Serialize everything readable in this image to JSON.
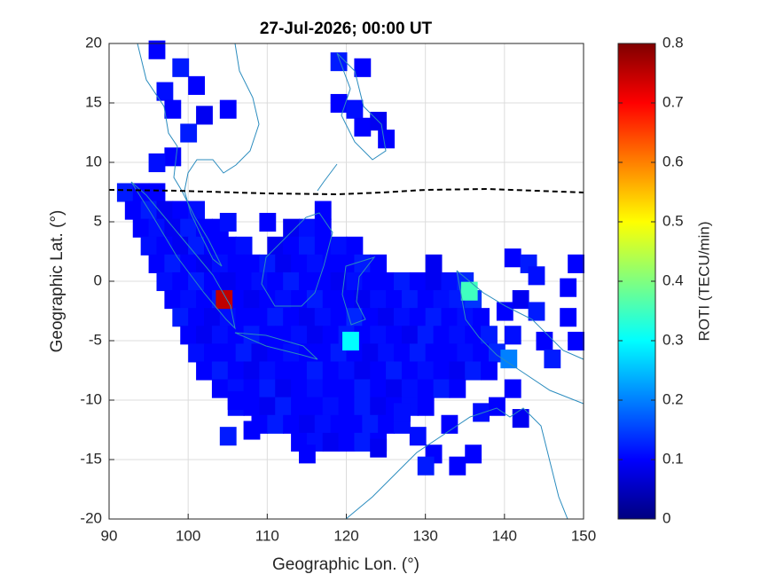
{
  "chart_data": {
    "type": "map",
    "title": "27-Jul-2026; 00:00 UT",
    "x_label": "Geographic Lon. (°)",
    "y_label": "Geographic Lat. (°)",
    "colorbar_label": "ROTI (TECU/min)",
    "colormap": "jet",
    "grid": true,
    "xlim": [
      90,
      150
    ],
    "ylim": [
      -20,
      20
    ],
    "xticks": [
      90,
      100,
      110,
      120,
      130,
      140,
      150
    ],
    "yticks": [
      20,
      15,
      10,
      5,
      0,
      -5,
      -10,
      -15,
      -20
    ],
    "clim": [
      0,
      0.8
    ],
    "cticks": [
      0,
      0.1,
      0.2,
      0.3,
      0.4,
      0.5,
      0.6,
      0.7,
      0.8
    ],
    "x": [
      92,
      94,
      96,
      93,
      95,
      97,
      99,
      101,
      117,
      94,
      96,
      98,
      100,
      102,
      104,
      113,
      115,
      117,
      95,
      97,
      99,
      101,
      103,
      105,
      107,
      111,
      113,
      115,
      117,
      119,
      121,
      96,
      98,
      100,
      102,
      104,
      106,
      108,
      110,
      112,
      114,
      116,
      118,
      120,
      122,
      124,
      131,
      97,
      99,
      101,
      103,
      105,
      107,
      109,
      111,
      113,
      115,
      117,
      119,
      121,
      123,
      125,
      127,
      129,
      131,
      133,
      135,
      98,
      100,
      102,
      104,
      106,
      108,
      110,
      112,
      114,
      116,
      118,
      120,
      122,
      124,
      126,
      128,
      130,
      132,
      134,
      136,
      99,
      101,
      103,
      105,
      107,
      109,
      111,
      113,
      115,
      117,
      119,
      121,
      123,
      125,
      127,
      129,
      131,
      133,
      135,
      137,
      100,
      102,
      104,
      106,
      108,
      110,
      112,
      114,
      116,
      118,
      120,
      122,
      124,
      126,
      128,
      130,
      132,
      134,
      136,
      138,
      101,
      103,
      105,
      107,
      109,
      111,
      113,
      115,
      117,
      119,
      121,
      123,
      125,
      127,
      129,
      131,
      133,
      135,
      137,
      139,
      102,
      104,
      106,
      108,
      110,
      112,
      114,
      116,
      118,
      120,
      122,
      124,
      126,
      128,
      130,
      132,
      134,
      136,
      138,
      104,
      106,
      108,
      110,
      112,
      114,
      116,
      118,
      120,
      122,
      124,
      126,
      128,
      130,
      132,
      134,
      106,
      108,
      110,
      112,
      114,
      116,
      118,
      120,
      122,
      124,
      126,
      128,
      130,
      109,
      111,
      113,
      115,
      117,
      119,
      121,
      123,
      125,
      127,
      114,
      116,
      118,
      120,
      122,
      124,
      104.5,
      135.5,
      120.5,
      140.5,
      96,
      99,
      101,
      97,
      98,
      102,
      105,
      100,
      98,
      96,
      119,
      122,
      119,
      121,
      122,
      124,
      125,
      105,
      110,
      141,
      143,
      149,
      144,
      148,
      142,
      140,
      144,
      148,
      141,
      145,
      149,
      146,
      141,
      137,
      139,
      142,
      106,
      105,
      108,
      129,
      131,
      134,
      130,
      136,
      124,
      115,
      127,
      133
    ],
    "y": [
      7.5,
      7.5,
      7.5,
      6,
      6,
      6,
      6,
      6,
      6,
      4.5,
      4.5,
      4.5,
      4.5,
      4.5,
      4.5,
      4.5,
      4.5,
      4.5,
      3,
      3,
      3,
      3,
      3,
      3,
      3,
      3,
      3,
      3,
      3,
      3,
      3,
      1.5,
      1.5,
      1.5,
      1.5,
      1.5,
      1.5,
      1.5,
      1.5,
      1.5,
      1.5,
      1.5,
      1.5,
      1.5,
      1.5,
      1.5,
      1.5,
      0,
      0,
      0,
      0,
      0,
      0,
      0,
      0,
      0,
      0,
      0,
      0,
      0,
      0,
      0,
      0,
      0,
      0,
      0,
      0,
      -1.5,
      -1.5,
      -1.5,
      -1.5,
      -1.5,
      -1.5,
      -1.5,
      -1.5,
      -1.5,
      -1.5,
      -1.5,
      -1.5,
      -1.5,
      -1.5,
      -1.5,
      -1.5,
      -1.5,
      -1.5,
      -1.5,
      -1.5,
      -3,
      -3,
      -3,
      -3,
      -3,
      -3,
      -3,
      -3,
      -3,
      -3,
      -3,
      -3,
      -3,
      -3,
      -3,
      -3,
      -3,
      -3,
      -3,
      -3,
      -4.5,
      -4.5,
      -4.5,
      -4.5,
      -4.5,
      -4.5,
      -4.5,
      -4.5,
      -4.5,
      -4.5,
      -4.5,
      -4.5,
      -4.5,
      -4.5,
      -4.5,
      -4.5,
      -4.5,
      -4.5,
      -4.5,
      -4.5,
      -6,
      -6,
      -6,
      -6,
      -6,
      -6,
      -6,
      -6,
      -6,
      -6,
      -6,
      -6,
      -6,
      -6,
      -6,
      -6,
      -6,
      -6,
      -6,
      -6,
      -7.5,
      -7.5,
      -7.5,
      -7.5,
      -7.5,
      -7.5,
      -7.5,
      -7.5,
      -7.5,
      -7.5,
      -7.5,
      -7.5,
      -7.5,
      -7.5,
      -7.5,
      -7.5,
      -7.5,
      -7.5,
      -7.5,
      -9,
      -9,
      -9,
      -9,
      -9,
      -9,
      -9,
      -9,
      -9,
      -9,
      -9,
      -9,
      -9,
      -9,
      -9,
      -9,
      -10.5,
      -10.5,
      -10.5,
      -10.5,
      -10.5,
      -10.5,
      -10.5,
      -10.5,
      -10.5,
      -10.5,
      -10.5,
      -10.5,
      -10.5,
      -12,
      -12,
      -12,
      -12,
      -12,
      -12,
      -12,
      -12,
      -12,
      -12,
      -13.5,
      -13.5,
      -13.5,
      -13.5,
      -13.5,
      -13.5,
      -1.5,
      -0.8,
      -5,
      -6.5,
      19.5,
      18,
      16.5,
      16,
      14.5,
      14,
      14.5,
      12.5,
      10.5,
      10,
      18.5,
      18,
      15,
      14.5,
      13,
      13.5,
      12,
      5,
      5,
      2,
      1.5,
      1.5,
      0.5,
      -0.5,
      -1.5,
      -2.5,
      -2.5,
      -3,
      -4.5,
      -5,
      -5,
      -6.5,
      -9,
      -11,
      -10.5,
      -11.5,
      -10,
      -13,
      -12.5,
      -13,
      -14.5,
      -15.5,
      -15.5,
      -14.5,
      -14,
      -14.5,
      -11,
      -12
    ],
    "values": [
      0.12,
      0.1,
      0.1,
      0.1,
      0.12,
      0.09,
      0.1,
      0.11,
      0.1,
      0.1,
      0.11,
      0.09,
      0.12,
      0.1,
      0.1,
      0.09,
      0.11,
      0.1,
      0.11,
      0.1,
      0.09,
      0.12,
      0.1,
      0.1,
      0.11,
      0.09,
      0.1,
      0.12,
      0.1,
      0.11,
      0.1,
      0.1,
      0.12,
      0.1,
      0.09,
      0.11,
      0.1,
      0.1,
      0.12,
      0.09,
      0.1,
      0.11,
      0.1,
      0.1,
      0.12,
      0.1,
      0.09,
      0.11,
      0.1,
      0.12,
      0.1,
      0.09,
      0.1,
      0.11,
      0.1,
      0.12,
      0.1,
      0.1,
      0.09,
      0.11,
      0.1,
      0.1,
      0.12,
      0.1,
      0.09,
      0.11,
      0.13,
      0.1,
      0.11,
      0.1,
      0.12,
      0.1,
      0.09,
      0.1,
      0.11,
      0.1,
      0.12,
      0.1,
      0.1,
      0.09,
      0.11,
      0.1,
      0.12,
      0.1,
      0.11,
      0.12,
      0.14,
      0.12,
      0.1,
      0.09,
      0.11,
      0.1,
      0.1,
      0.12,
      0.1,
      0.09,
      0.11,
      0.1,
      0.13,
      0.1,
      0.09,
      0.11,
      0.1,
      0.12,
      0.1,
      0.11,
      0.1,
      0.1,
      0.09,
      0.11,
      0.1,
      0.12,
      0.1,
      0.1,
      0.11,
      0.09,
      0.1,
      0.12,
      0.1,
      0.11,
      0.1,
      0.09,
      0.12,
      0.1,
      0.11,
      0.1,
      0.12,
      0.11,
      0.1,
      0.1,
      0.12,
      0.09,
      0.1,
      0.11,
      0.1,
      0.1,
      0.12,
      0.1,
      0.09,
      0.11,
      0.1,
      0.12,
      0.1,
      0.1,
      0.11,
      0.1,
      0.13,
      0.1,
      0.12,
      0.1,
      0.09,
      0.11,
      0.1,
      0.1,
      0.12,
      0.1,
      0.11,
      0.09,
      0.1,
      0.12,
      0.1,
      0.11,
      0.1,
      0.09,
      0.12,
      0.1,
      0.1,
      0.11,
      0.1,
      0.12,
      0.09,
      0.1,
      0.11,
      0.1,
      0.1,
      0.12,
      0.1,
      0.09,
      0.11,
      0.1,
      0.12,
      0.1,
      0.11,
      0.1,
      0.09,
      0.12,
      0.1,
      0.1,
      0.11,
      0.1,
      0.12,
      0.09,
      0.1,
      0.11,
      0.1,
      0.1,
      0.12,
      0.1,
      0.09,
      0.11,
      0.1,
      0.1,
      0.12,
      0.1,
      0.11,
      0.1,
      0.11,
      0.09,
      0.1,
      0.12,
      0.1,
      0.75,
      0.35,
      0.3,
      0.2,
      0.1,
      0.12,
      0.1,
      0.11,
      0.1,
      0.09,
      0.1,
      0.12,
      0.1,
      0.11,
      0.12,
      0.1,
      0.1,
      0.11,
      0.1,
      0.09,
      0.1,
      0.11,
      0.1,
      0.1,
      0.12,
      0.1,
      0.11,
      0.1,
      0.09,
      0.1,
      0.12,
      0.1,
      0.11,
      0.1,
      0.1,
      0.12,
      0.1,
      0.11,
      0.1,
      0.09,
      0.1,
      0.12,
      0.1,
      0.11,
      0.1,
      0.1,
      0.12,
      0.1,
      0.09,
      0.1,
      0.11,
      0.1
    ]
  }
}
